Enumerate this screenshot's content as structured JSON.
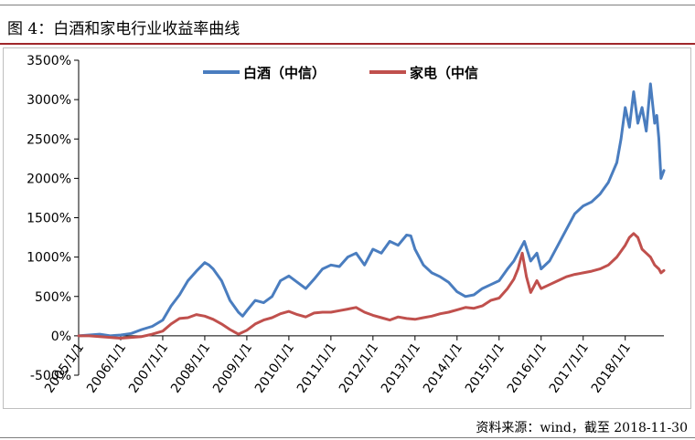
{
  "title": "图 4：白酒和家电行业收益率曲线",
  "source": "资料来源：wind，截至 2018-11-30",
  "chart_data": {
    "type": "line",
    "ylim": [
      -500,
      3500
    ],
    "yticks": [
      3500,
      3000,
      2500,
      2000,
      1500,
      1000,
      500,
      0,
      -500
    ],
    "ytick_labels": [
      "3500%",
      "3000%",
      "2500%",
      "2000%",
      "1500%",
      "1000%",
      "500%",
      "0%",
      "-500%"
    ],
    "xlim": [
      2005.0,
      2018.92
    ],
    "xticks": [
      2005,
      2006,
      2007,
      2008,
      2009,
      2010,
      2011,
      2012,
      2013,
      2014,
      2015,
      2016,
      2017,
      2018
    ],
    "xtick_labels": [
      "2005/1/1",
      "2006/1/1",
      "2007/1/1",
      "2008/1/1",
      "2009/1/1",
      "2010/1/1",
      "2011/1/1",
      "2012/1/1",
      "2013/1/1",
      "2014/1/1",
      "2015/1/1",
      "2016/1/1",
      "2017/1/1",
      "2018/1/1"
    ],
    "legend_position": "top-center",
    "grid": false,
    "series": [
      {
        "name": "白酒（中信）",
        "color": "#4a7dbf",
        "x": [
          2005.0,
          2005.25,
          2005.5,
          2005.75,
          2006.0,
          2006.25,
          2006.5,
          2006.75,
          2007.0,
          2007.2,
          2007.4,
          2007.6,
          2007.8,
          2008.0,
          2008.1,
          2008.2,
          2008.4,
          2008.6,
          2008.8,
          2008.9,
          2009.0,
          2009.2,
          2009.4,
          2009.6,
          2009.8,
          2010.0,
          2010.2,
          2010.4,
          2010.6,
          2010.8,
          2011.0,
          2011.2,
          2011.4,
          2011.6,
          2011.8,
          2012.0,
          2012.2,
          2012.4,
          2012.6,
          2012.8,
          2012.9,
          2013.0,
          2013.2,
          2013.4,
          2013.6,
          2013.8,
          2014.0,
          2014.2,
          2014.4,
          2014.6,
          2014.8,
          2015.0,
          2015.2,
          2015.35,
          2015.5,
          2015.6,
          2015.75,
          2015.9,
          2016.0,
          2016.2,
          2016.4,
          2016.6,
          2016.8,
          2017.0,
          2017.2,
          2017.4,
          2017.6,
          2017.8,
          2017.9,
          2018.0,
          2018.1,
          2018.2,
          2018.3,
          2018.4,
          2018.5,
          2018.6,
          2018.7,
          2018.75,
          2018.8,
          2018.85,
          2018.92
        ],
        "y": [
          0,
          10,
          20,
          0,
          10,
          30,
          80,
          120,
          200,
          380,
          520,
          700,
          820,
          930,
          900,
          850,
          700,
          450,
          300,
          250,
          320,
          450,
          420,
          500,
          700,
          760,
          680,
          600,
          720,
          850,
          900,
          880,
          1000,
          1050,
          900,
          1100,
          1050,
          1200,
          1150,
          1280,
          1270,
          1100,
          900,
          800,
          750,
          680,
          560,
          500,
          520,
          600,
          650,
          700,
          850,
          950,
          1100,
          1200,
          950,
          1050,
          850,
          950,
          1150,
          1350,
          1550,
          1650,
          1700,
          1800,
          1950,
          2200,
          2500,
          2900,
          2650,
          3100,
          2700,
          2900,
          2600,
          3200,
          2700,
          2800,
          2500,
          2000,
          2100
        ]
      },
      {
        "name": "家电（中信",
        "color": "#c0504d",
        "x": [
          2005.0,
          2005.25,
          2005.5,
          2005.75,
          2006.0,
          2006.25,
          2006.5,
          2006.75,
          2007.0,
          2007.2,
          2007.4,
          2007.6,
          2007.8,
          2008.0,
          2008.2,
          2008.4,
          2008.6,
          2008.8,
          2009.0,
          2009.2,
          2009.4,
          2009.6,
          2009.8,
          2010.0,
          2010.2,
          2010.4,
          2010.6,
          2010.8,
          2011.0,
          2011.2,
          2011.4,
          2011.6,
          2011.8,
          2012.0,
          2012.2,
          2012.4,
          2012.6,
          2012.8,
          2013.0,
          2013.2,
          2013.4,
          2013.6,
          2013.8,
          2014.0,
          2014.2,
          2014.4,
          2014.6,
          2014.8,
          2015.0,
          2015.2,
          2015.35,
          2015.45,
          2015.55,
          2015.65,
          2015.75,
          2015.9,
          2016.0,
          2016.2,
          2016.4,
          2016.6,
          2016.8,
          2017.0,
          2017.2,
          2017.4,
          2017.6,
          2017.8,
          2018.0,
          2018.1,
          2018.2,
          2018.3,
          2018.4,
          2018.5,
          2018.6,
          2018.7,
          2018.8,
          2018.85,
          2018.92
        ],
        "y": [
          0,
          0,
          -10,
          -20,
          -30,
          -20,
          -10,
          20,
          60,
          150,
          220,
          230,
          270,
          250,
          210,
          150,
          80,
          20,
          70,
          150,
          200,
          230,
          280,
          310,
          270,
          240,
          290,
          300,
          300,
          320,
          340,
          360,
          300,
          260,
          230,
          200,
          240,
          220,
          210,
          230,
          250,
          280,
          300,
          330,
          360,
          350,
          380,
          450,
          480,
          600,
          720,
          850,
          1050,
          750,
          550,
          700,
          600,
          650,
          700,
          750,
          780,
          800,
          820,
          850,
          900,
          1000,
          1150,
          1250,
          1300,
          1250,
          1100,
          1050,
          1000,
          900,
          850,
          800,
          830
        ]
      }
    ]
  }
}
